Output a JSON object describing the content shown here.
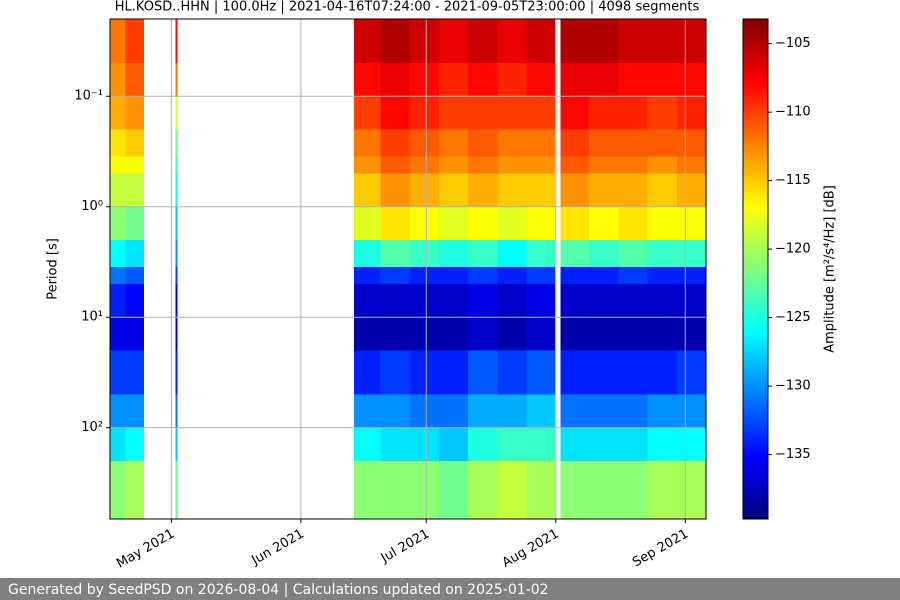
{
  "chart_data": {
    "type": "heatmap",
    "title": "HL.KOSD..HHN | 100.0Hz | 2021-04-16T07:24:00 - 2021-09-05T23:00:00 | 4098 segments",
    "ylabel": "Period [s]",
    "x": [
      "2021-04-16T07:24:00",
      "2021-04-20T00:00:00",
      "2021-04-24T12:00:00",
      "2021-05-02T00:00:00",
      "2021-05-02T12:00:00",
      "2021-06-13T16:00:00",
      "2021-06-20T00:00:00",
      "2021-06-27T00:00:00",
      "2021-07-04T00:00:00",
      "2021-07-11T00:00:00",
      "2021-07-18T00:00:00",
      "2021-07-25T00:00:00",
      "2021-07-31T20:00:00",
      "2021-08-02T04:00:00",
      "2021-08-09T00:00:00",
      "2021-08-16T00:00:00",
      "2021-08-23T00:00:00",
      "2021-08-30T00:00:00",
      "2021-09-05T23:00:00"
    ],
    "y": [
      0.02,
      0.05,
      0.1,
      0.2,
      0.35,
      0.5,
      1,
      2,
      3.5,
      5,
      10,
      20,
      50,
      100,
      200,
      670
    ],
    "values": [
      [
        -112,
        -113,
        -114,
        -116,
        -117,
        -119,
        -121,
        -126,
        -131,
        -134,
        -136,
        -133,
        -130,
        -127,
        -121
      ],
      [
        -110,
        -111,
        -113,
        -115,
        -117,
        -119,
        -122,
        -127,
        -132,
        -135,
        -136,
        -133,
        -130,
        -126,
        -120
      ],
      null,
      [
        -108,
        -112,
        -118,
        -122,
        -124,
        -126,
        -128,
        -130,
        -133,
        -135,
        -136,
        -134,
        -131,
        -128,
        -122
      ],
      null,
      [
        -106,
        -108,
        -110,
        -112,
        -113,
        -115,
        -118,
        -125,
        -134,
        -137,
        -138,
        -134,
        -130,
        -126,
        -121
      ],
      [
        -105,
        -107,
        -108,
        -110,
        -111,
        -113,
        -116,
        -123,
        -133,
        -137,
        -138,
        -133,
        -130,
        -127,
        -121
      ],
      [
        -106,
        -108,
        -109,
        -111,
        -112,
        -114,
        -117,
        -124,
        -134,
        -137,
        -138,
        -134,
        -131,
        -127,
        -121
      ],
      [
        -107,
        -109,
        -110,
        -112,
        -113,
        -115,
        -118,
        -125,
        -134,
        -137,
        -138,
        -134,
        -131,
        -128,
        -122
      ],
      [
        -106,
        -108,
        -110,
        -111,
        -112,
        -114,
        -117,
        -124,
        -133,
        -136,
        -137,
        -132,
        -129,
        -125,
        -120
      ],
      [
        -107,
        -109,
        -110,
        -112,
        -113,
        -115,
        -118,
        -126,
        -134,
        -137,
        -138,
        -133,
        -129,
        -124,
        -119
      ],
      [
        -106,
        -108,
        -110,
        -112,
        -113,
        -115,
        -117,
        -124,
        -133,
        -136,
        -137,
        -132,
        -128,
        -124,
        -120
      ],
      null,
      [
        -105,
        -107,
        -108,
        -110,
        -111,
        -113,
        -116,
        -123,
        -134,
        -137,
        -138,
        -134,
        -131,
        -127,
        -121
      ],
      [
        -105,
        -107,
        -109,
        -111,
        -112,
        -114,
        -117,
        -124,
        -134,
        -137,
        -138,
        -134,
        -131,
        -127,
        -121
      ],
      [
        -106,
        -108,
        -109,
        -111,
        -112,
        -114,
        -116,
        -123,
        -133,
        -137,
        -138,
        -134,
        -131,
        -127,
        -121
      ],
      [
        -106,
        -108,
        -110,
        -111,
        -113,
        -115,
        -117,
        -124,
        -134,
        -137,
        -138,
        -134,
        -130,
        -126,
        -120
      ],
      [
        -106,
        -108,
        -109,
        -111,
        -112,
        -114,
        -117,
        -124,
        -134,
        -137,
        -138,
        -133,
        -130,
        -126,
        -120
      ]
    ],
    "xlim": [
      "2021-04-16T07:24:00",
      "2021-09-05T23:00:00"
    ],
    "xticks": [
      {
        "value": "2021-05-01T00:00:00",
        "label": "May 2021"
      },
      {
        "value": "2021-06-01T00:00:00",
        "label": "Jun 2021"
      },
      {
        "value": "2021-07-01T00:00:00",
        "label": "Jul 2021"
      },
      {
        "value": "2021-08-01T00:00:00",
        "label": "Aug 2021"
      },
      {
        "value": "2021-09-01T00:00:00",
        "label": "Sep 2021"
      }
    ],
    "ylim": [
      0.02,
      670
    ],
    "yscale": "log",
    "y_inverted": true,
    "yticks": [
      {
        "value": 0.1,
        "label": "10⁻¹"
      },
      {
        "value": 1,
        "label": "10⁰"
      },
      {
        "value": 10,
        "label": "10¹"
      },
      {
        "value": 100,
        "label": "10²"
      }
    ],
    "grid": true,
    "colorbar": {
      "label": "Amplitude [m²/s⁴/Hz] [dB]",
      "colormap": "jet",
      "lim": [
        -139.7,
        -103.2
      ],
      "ticks": [
        {
          "value": -105,
          "label": "−105"
        },
        {
          "value": -110,
          "label": "−110"
        },
        {
          "value": -115,
          "label": "−115"
        },
        {
          "value": -120,
          "label": "−120"
        },
        {
          "value": -125,
          "label": "−125"
        },
        {
          "value": -130,
          "label": "−130"
        },
        {
          "value": -135,
          "label": "−135"
        }
      ]
    }
  },
  "footer": "Generated by SeedPSD on 2026-08-04 | Calculations updated on 2025-01-02"
}
